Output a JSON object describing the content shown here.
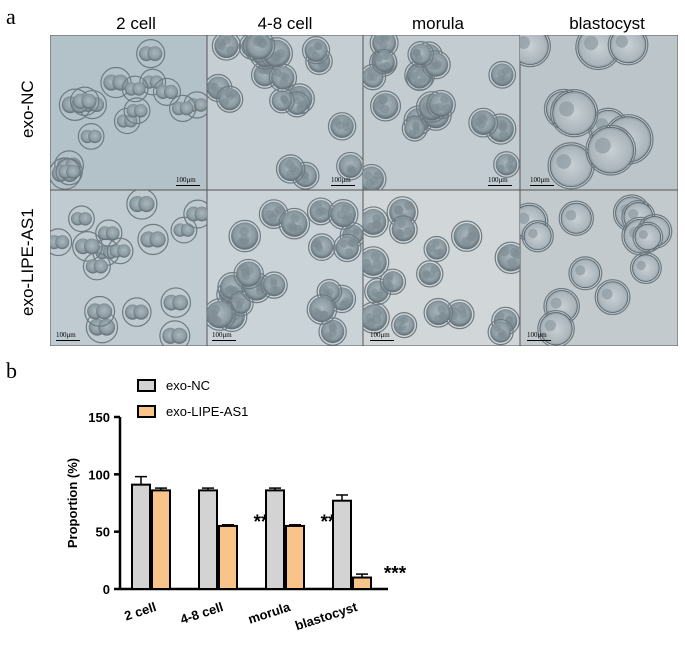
{
  "panels": {
    "a": "a",
    "b": "b"
  },
  "micrographs": {
    "columns": [
      "2 cell",
      "4-8 cell",
      "morula",
      "blastocyst"
    ],
    "rows": [
      "exo-NC",
      "exo-LIPE-AS1"
    ],
    "scale_label": "100μm"
  },
  "chart_data": {
    "type": "bar",
    "categories": [
      "2 cell",
      "4-8 cell",
      "morula",
      "blastocyst"
    ],
    "series": [
      {
        "name": "exo-NC",
        "values": [
          91,
          86,
          86,
          77
        ],
        "errors": [
          7,
          2,
          2,
          5
        ],
        "color": "#d3d3d3"
      },
      {
        "name": "exo-LIPE-AS1",
        "values": [
          86,
          55,
          55,
          10
        ],
        "errors": [
          2,
          1,
          1,
          3
        ],
        "color": "#f8c48a"
      }
    ],
    "significance": [
      "",
      "**",
      "**",
      "***"
    ],
    "ylabel": "Proportion (%)",
    "ylim": [
      0,
      150
    ],
    "yticks": [
      0,
      50,
      100,
      150
    ],
    "legend_position": "top-left",
    "grid": false
  }
}
